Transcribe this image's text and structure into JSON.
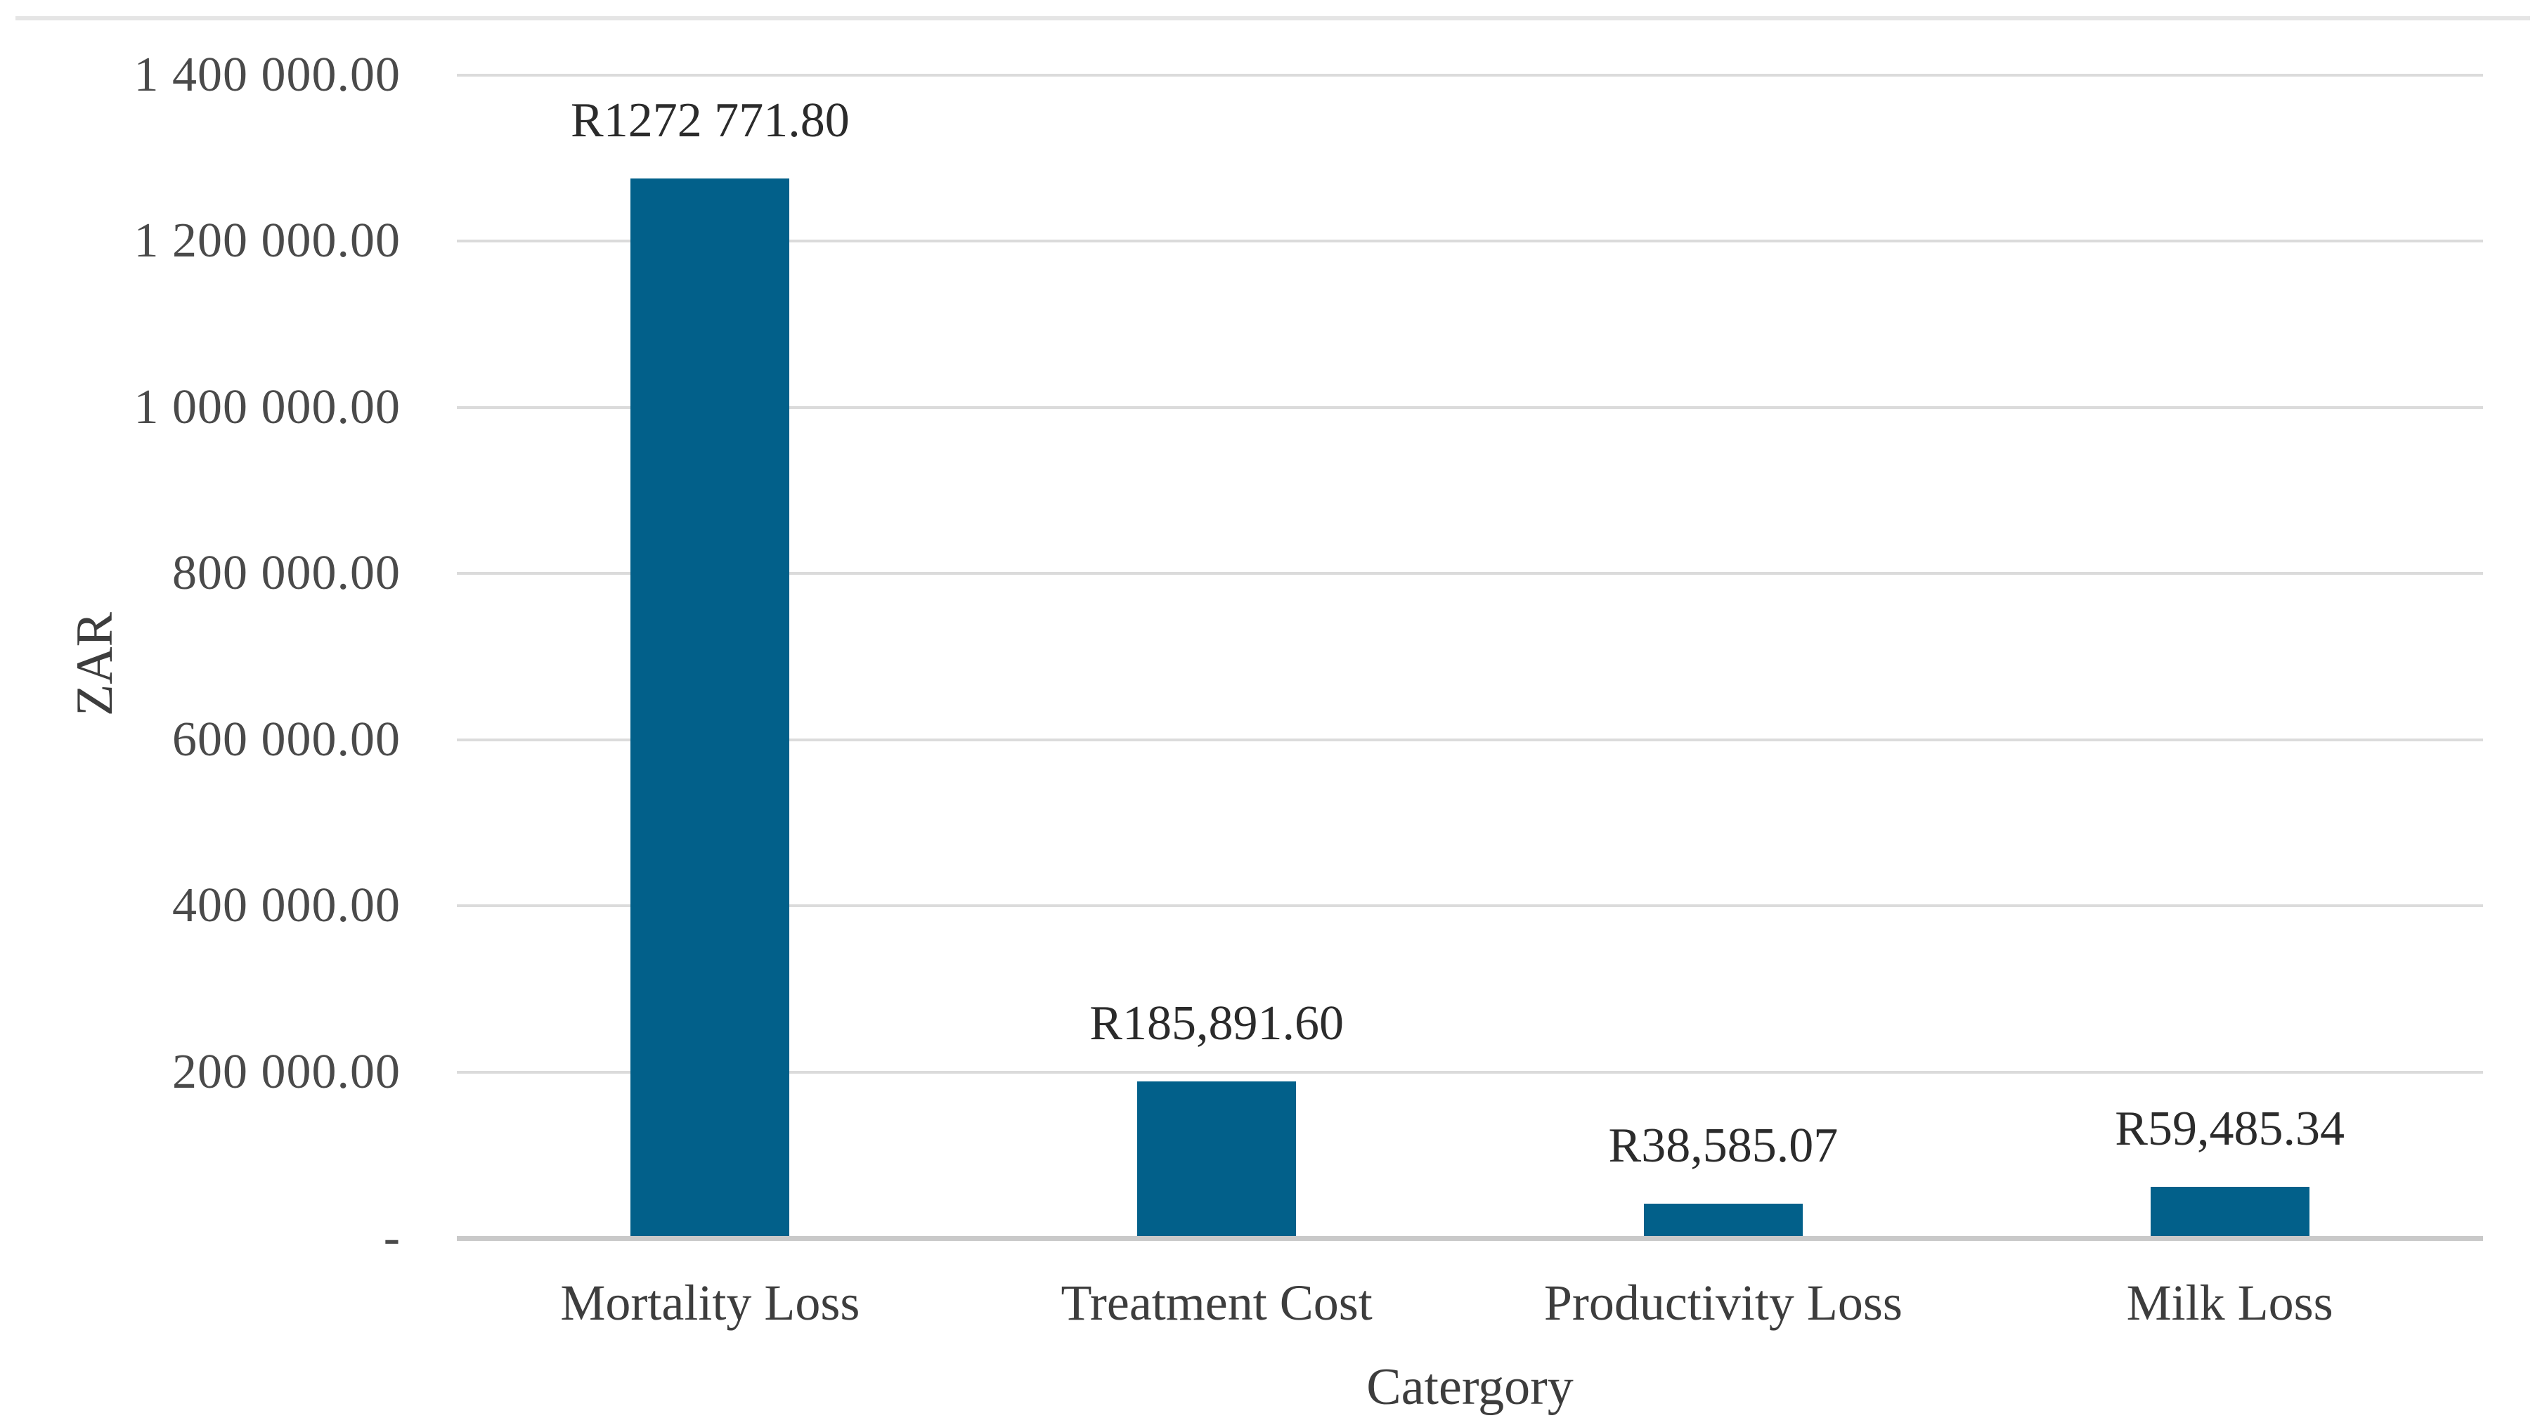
{
  "chart_data": {
    "type": "bar",
    "categories": [
      "Mortality Loss",
      "Treatment Cost",
      "Productivity Loss",
      "Milk Loss"
    ],
    "values": [
      1272771.8,
      185891.6,
      38585.07,
      59485.34
    ],
    "bar_value_labels": [
      "R1272 771.80",
      "R185,891.60",
      "R38,585.07",
      "R59,485.34"
    ],
    "xlabel": "Catergory",
    "ylabel": "ZAR",
    "ylim": [
      0,
      1400000
    ],
    "y_ticks": [
      {
        "value": 1400000,
        "label": "1 400 000.00"
      },
      {
        "value": 1200000,
        "label": "1 200 000.00"
      },
      {
        "value": 1000000,
        "label": "1 000 000.00"
      },
      {
        "value": 800000,
        "label": "800 000.00"
      },
      {
        "value": 600000,
        "label": "600 000.00"
      },
      {
        "value": 400000,
        "label": "400 000.00"
      },
      {
        "value": 200000,
        "label": "200 000.00"
      },
      {
        "value": 0,
        "label": "-"
      }
    ],
    "grid": "horizontal",
    "legend": "none",
    "colors": {
      "bar_fill": "#02608A",
      "gridline": "#DBDBDB",
      "axis_line": "#C9C9C9",
      "top_border": "#E5E5E5",
      "tick_text": "#4A4A4A",
      "label_text": "#2B2B2B",
      "title_text": "#3D3D3D"
    }
  }
}
